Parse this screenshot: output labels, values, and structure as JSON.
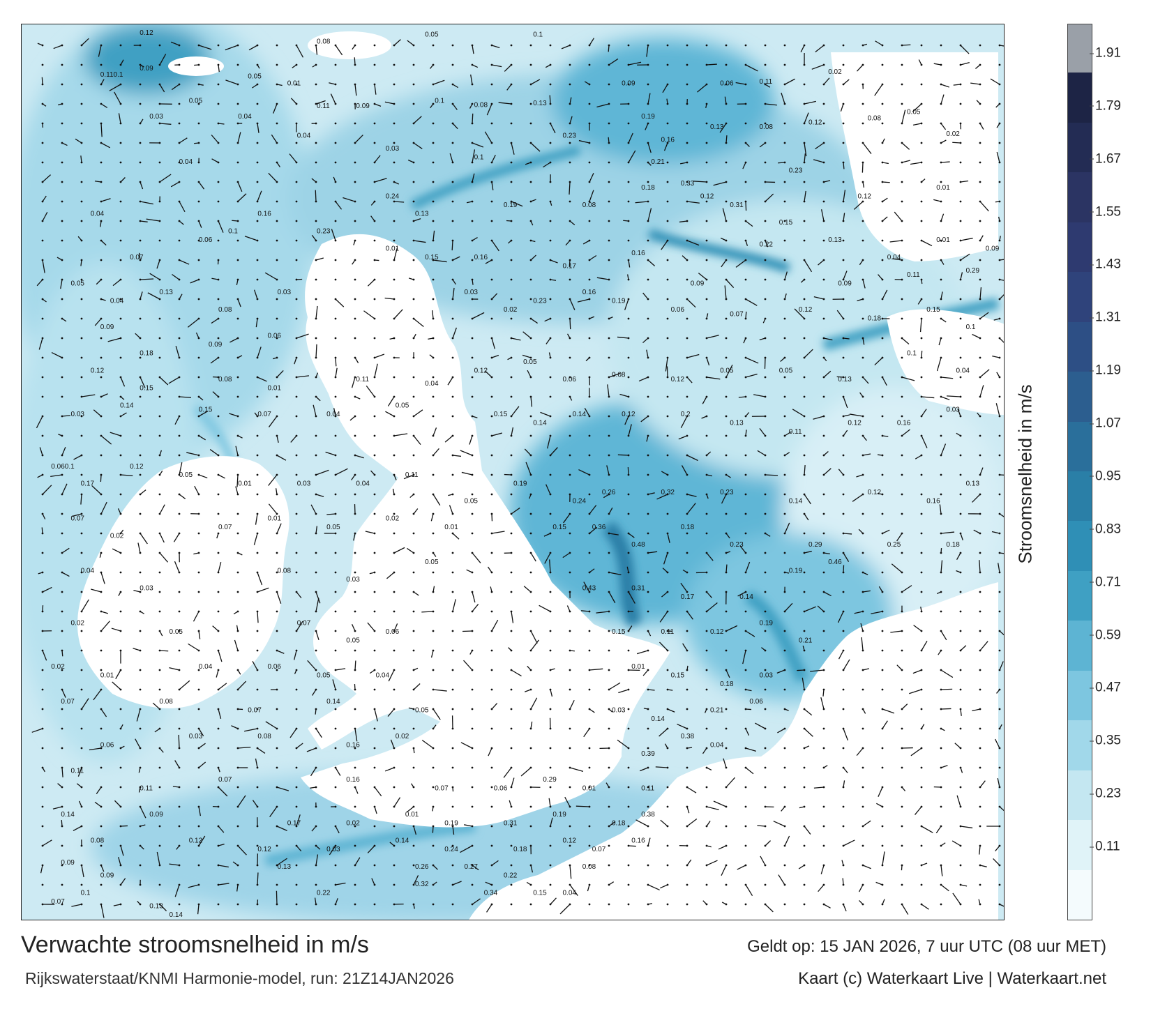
{
  "title": "Verwachte stroomsnelheid in m/s",
  "subtitle": "Rijkswaterstaat/KNMI Harmonie-model, run: 21Z14JAN2026",
  "valid_time": "Geldt op: 15 JAN 2026, 7 uur UTC (08 uur MET)",
  "credit": "Kaart (c) Waterkaart Live | Waterkaart.net",
  "colorbar": {
    "title": "Stroomsnelheid in m/s",
    "ticks": [
      "0.11",
      "0.23",
      "0.35",
      "0.47",
      "0.59",
      "0.71",
      "0.83",
      "0.95",
      "1.07",
      "1.19",
      "1.31",
      "1.43",
      "1.55",
      "1.67",
      "1.79",
      "1.91"
    ],
    "colors": [
      "#f4fbfd",
      "#e0f3f8",
      "#c4e7f1",
      "#a1d8ea",
      "#7dc6e0",
      "#5db4d3",
      "#3fa0c3",
      "#2f8fb6",
      "#2a7fa7",
      "#2a6f9b",
      "#2c5e8f",
      "#2d4f85",
      "#2f437b",
      "#2e3a70",
      "#2b3463",
      "#232c54",
      "#1d2445",
      "#9aa0a8"
    ]
  },
  "map": {
    "legend_speed_colors": [
      "#ffffff",
      "#d8eff6",
      "#9fd4e8",
      "#5fb6d6",
      "#2e95c0"
    ],
    "labels": [
      {
        "x": 12,
        "y": 1.2,
        "t": "0.12"
      },
      {
        "x": 30,
        "y": 2.2,
        "t": "0.08"
      },
      {
        "x": 41,
        "y": 1.4,
        "t": "0.05"
      },
      {
        "x": 52,
        "y": 1.4,
        "t": "0.1"
      },
      {
        "x": 8,
        "y": 6,
        "t": "0.110.1"
      },
      {
        "x": 12,
        "y": 5.3,
        "t": "0.09"
      },
      {
        "x": 23,
        "y": 6.2,
        "t": "0.05"
      },
      {
        "x": 27,
        "y": 7,
        "t": "0.01"
      },
      {
        "x": 17,
        "y": 9,
        "t": "0.05"
      },
      {
        "x": 13,
        "y": 10.8,
        "t": "0.03"
      },
      {
        "x": 22,
        "y": 10.8,
        "t": "0.04"
      },
      {
        "x": 30,
        "y": 9.6,
        "t": "0.11"
      },
      {
        "x": 34,
        "y": 9.6,
        "t": "0.09"
      },
      {
        "x": 42,
        "y": 9,
        "t": "0.1"
      },
      {
        "x": 46,
        "y": 9.5,
        "t": "0.08"
      },
      {
        "x": 52,
        "y": 9.3,
        "t": "0.13"
      },
      {
        "x": 61,
        "y": 7,
        "t": "0.09"
      },
      {
        "x": 71,
        "y": 7,
        "t": "0.06"
      },
      {
        "x": 75,
        "y": 6.8,
        "t": "0.11"
      },
      {
        "x": 82,
        "y": 5.7,
        "t": "0.02"
      },
      {
        "x": 63,
        "y": 10.8,
        "t": "0.19"
      },
      {
        "x": 65,
        "y": 13.5,
        "t": "0.16"
      },
      {
        "x": 70,
        "y": 12,
        "t": "0.13"
      },
      {
        "x": 75,
        "y": 12,
        "t": "0.08"
      },
      {
        "x": 80,
        "y": 11.5,
        "t": "0.12"
      },
      {
        "x": 86,
        "y": 11,
        "t": "0.08"
      },
      {
        "x": 90,
        "y": 10.3,
        "t": "0.05"
      },
      {
        "x": 94,
        "y": 12.8,
        "t": "0.02"
      },
      {
        "x": 16,
        "y": 16,
        "t": "0.04"
      },
      {
        "x": 18,
        "y": 25,
        "t": "0.06"
      },
      {
        "x": 28,
        "y": 13,
        "t": "0.04"
      },
      {
        "x": 37,
        "y": 14.5,
        "t": "0.03"
      },
      {
        "x": 46,
        "y": 15.5,
        "t": "0.1"
      },
      {
        "x": 55,
        "y": 13,
        "t": "0.23"
      },
      {
        "x": 64,
        "y": 16,
        "t": "0.21"
      },
      {
        "x": 69,
        "y": 20,
        "t": "0.12"
      },
      {
        "x": 78,
        "y": 17,
        "t": "0.23"
      },
      {
        "x": 85,
        "y": 20,
        "t": "0.12"
      },
      {
        "x": 93,
        "y": 19,
        "t": "0.01"
      },
      {
        "x": 7,
        "y": 22,
        "t": "0.04"
      },
      {
        "x": 11,
        "y": 27,
        "t": "0.07"
      },
      {
        "x": 21,
        "y": 24,
        "t": "0.1"
      },
      {
        "x": 24,
        "y": 22,
        "t": "0.16"
      },
      {
        "x": 30,
        "y": 24,
        "t": "0.23"
      },
      {
        "x": 37,
        "y": 20,
        "t": "0.24"
      },
      {
        "x": 40,
        "y": 22,
        "t": "0.13"
      },
      {
        "x": 49,
        "y": 21,
        "t": "0.19"
      },
      {
        "x": 57,
        "y": 21,
        "t": "0.08"
      },
      {
        "x": 63,
        "y": 19,
        "t": "0.18"
      },
      {
        "x": 67,
        "y": 18.5,
        "t": "0.33"
      },
      {
        "x": 72,
        "y": 21,
        "t": "0.31"
      },
      {
        "x": 77,
        "y": 23,
        "t": "0.15"
      },
      {
        "x": 82,
        "y": 25,
        "t": "0.13"
      },
      {
        "x": 88,
        "y": 27,
        "t": "0.04"
      },
      {
        "x": 93,
        "y": 25,
        "t": "0.01"
      },
      {
        "x": 98,
        "y": 26,
        "t": "0.09"
      },
      {
        "x": 5,
        "y": 30,
        "t": "0.05"
      },
      {
        "x": 9,
        "y": 32,
        "t": "0.04"
      },
      {
        "x": 14,
        "y": 31,
        "t": "0.13"
      },
      {
        "x": 20,
        "y": 33,
        "t": "0.08"
      },
      {
        "x": 26,
        "y": 31,
        "t": "0.03"
      },
      {
        "x": 37,
        "y": 26,
        "t": "0.01"
      },
      {
        "x": 41,
        "y": 27,
        "t": "0.15"
      },
      {
        "x": 46,
        "y": 27,
        "t": "0.16"
      },
      {
        "x": 55,
        "y": 28,
        "t": "0.17"
      },
      {
        "x": 62,
        "y": 26.5,
        "t": "0.16"
      },
      {
        "x": 68,
        "y": 30,
        "t": "0.09"
      },
      {
        "x": 75,
        "y": 25.5,
        "t": "0.22"
      },
      {
        "x": 83,
        "y": 30,
        "t": "0.09"
      },
      {
        "x": 90,
        "y": 29,
        "t": "0.11"
      },
      {
        "x": 96,
        "y": 28.5,
        "t": "0.29"
      },
      {
        "x": 8,
        "y": 35,
        "t": "0.09"
      },
      {
        "x": 12,
        "y": 38,
        "t": "0.18"
      },
      {
        "x": 19,
        "y": 37,
        "t": "0.09"
      },
      {
        "x": 25,
        "y": 36,
        "t": "0.06"
      },
      {
        "x": 45,
        "y": 31,
        "t": "0.03"
      },
      {
        "x": 49,
        "y": 33,
        "t": "0.02"
      },
      {
        "x": 52,
        "y": 32,
        "t": "0.23"
      },
      {
        "x": 57,
        "y": 31,
        "t": "0.16"
      },
      {
        "x": 60,
        "y": 32,
        "t": "0.19"
      },
      {
        "x": 66,
        "y": 33,
        "t": "0.06"
      },
      {
        "x": 72,
        "y": 33.5,
        "t": "0.07"
      },
      {
        "x": 79,
        "y": 33,
        "t": "0.12"
      },
      {
        "x": 86,
        "y": 34,
        "t": "0.18"
      },
      {
        "x": 92,
        "y": 33,
        "t": "0.15"
      },
      {
        "x": 96,
        "y": 35,
        "t": "0.1"
      },
      {
        "x": 7,
        "y": 40,
        "t": "0.12"
      },
      {
        "x": 12,
        "y": 42,
        "t": "0.15"
      },
      {
        "x": 20,
        "y": 41,
        "t": "0.08"
      },
      {
        "x": 25,
        "y": 42,
        "t": "0.01"
      },
      {
        "x": 34,
        "y": 41,
        "t": "0.11"
      },
      {
        "x": 41,
        "y": 41.5,
        "t": "0.04"
      },
      {
        "x": 46,
        "y": 40,
        "t": "0.12"
      },
      {
        "x": 51,
        "y": 39,
        "t": "0.05"
      },
      {
        "x": 55,
        "y": 41,
        "t": "0.06"
      },
      {
        "x": 60,
        "y": 40.5,
        "t": "0.08"
      },
      {
        "x": 66,
        "y": 41,
        "t": "0.12"
      },
      {
        "x": 71,
        "y": 40,
        "t": "0.05"
      },
      {
        "x": 77,
        "y": 40,
        "t": "0.05"
      },
      {
        "x": 83,
        "y": 41,
        "t": "0.13"
      },
      {
        "x": 90,
        "y": 38,
        "t": "0.1"
      },
      {
        "x": 95,
        "y": 40,
        "t": "0.04"
      },
      {
        "x": 5,
        "y": 45,
        "t": "0.03"
      },
      {
        "x": 10,
        "y": 44,
        "t": "0.14"
      },
      {
        "x": 18,
        "y": 44.5,
        "t": "0.15"
      },
      {
        "x": 24,
        "y": 45,
        "t": "0.07"
      },
      {
        "x": 31,
        "y": 45,
        "t": "0.04"
      },
      {
        "x": 38,
        "y": 44,
        "t": "0.05"
      },
      {
        "x": 48,
        "y": 45,
        "t": "0.15"
      },
      {
        "x": 52,
        "y": 46,
        "t": "0.14"
      },
      {
        "x": 56,
        "y": 45,
        "t": "0.14"
      },
      {
        "x": 61,
        "y": 45,
        "t": "0.12"
      },
      {
        "x": 67,
        "y": 45,
        "t": "0.2"
      },
      {
        "x": 72,
        "y": 46,
        "t": "0.13"
      },
      {
        "x": 78,
        "y": 47,
        "t": "0.11"
      },
      {
        "x": 84,
        "y": 46,
        "t": "0.12"
      },
      {
        "x": 89,
        "y": 46,
        "t": "0.16"
      },
      {
        "x": 94,
        "y": 44.5,
        "t": "0.03"
      },
      {
        "x": 3,
        "y": 51,
        "t": "0.060.1"
      },
      {
        "x": 6,
        "y": 53,
        "t": "0.17"
      },
      {
        "x": 11,
        "y": 51,
        "t": "0.12"
      },
      {
        "x": 16,
        "y": 52,
        "t": "0.05"
      },
      {
        "x": 22,
        "y": 53,
        "t": "0.01"
      },
      {
        "x": 28,
        "y": 53,
        "t": "0.03"
      },
      {
        "x": 34,
        "y": 53,
        "t": "0.04"
      },
      {
        "x": 39,
        "y": 52,
        "t": "0.11"
      },
      {
        "x": 45,
        "y": 55,
        "t": "0.05"
      },
      {
        "x": 50,
        "y": 53,
        "t": "0.19"
      },
      {
        "x": 56,
        "y": 55,
        "t": "0.24"
      },
      {
        "x": 59,
        "y": 54,
        "t": "0.26"
      },
      {
        "x": 65,
        "y": 54,
        "t": "0.32"
      },
      {
        "x": 71,
        "y": 54,
        "t": "0.23"
      },
      {
        "x": 78,
        "y": 55,
        "t": "0.14"
      },
      {
        "x": 86,
        "y": 54,
        "t": "0.12"
      },
      {
        "x": 92,
        "y": 55,
        "t": "0.16"
      },
      {
        "x": 96,
        "y": 53,
        "t": "0.13"
      },
      {
        "x": 5,
        "y": 57,
        "t": "0.07"
      },
      {
        "x": 9,
        "y": 59,
        "t": "0.02"
      },
      {
        "x": 20,
        "y": 58,
        "t": "0.07"
      },
      {
        "x": 25,
        "y": 57,
        "t": "0.01"
      },
      {
        "x": 31,
        "y": 58,
        "t": "0.05"
      },
      {
        "x": 37,
        "y": 57,
        "t": "0.02"
      },
      {
        "x": 43,
        "y": 58,
        "t": "0.01"
      },
      {
        "x": 54,
        "y": 58,
        "t": "0.15"
      },
      {
        "x": 58,
        "y": 58,
        "t": "0.36"
      },
      {
        "x": 62,
        "y": 60,
        "t": "0.48"
      },
      {
        "x": 67,
        "y": 58,
        "t": "0.18"
      },
      {
        "x": 72,
        "y": 60,
        "t": "0.23"
      },
      {
        "x": 80,
        "y": 60,
        "t": "0.29"
      },
      {
        "x": 88,
        "y": 60,
        "t": "0.25"
      },
      {
        "x": 94,
        "y": 60,
        "t": "0.18"
      },
      {
        "x": 6,
        "y": 63,
        "t": "0.04"
      },
      {
        "x": 12,
        "y": 65,
        "t": "0.03"
      },
      {
        "x": 26,
        "y": 63,
        "t": "0.08"
      },
      {
        "x": 33,
        "y": 64,
        "t": "0.03"
      },
      {
        "x": 41,
        "y": 62,
        "t": "0.05"
      },
      {
        "x": 57,
        "y": 65,
        "t": "0.43"
      },
      {
        "x": 62,
        "y": 65,
        "t": "0.31"
      },
      {
        "x": 67,
        "y": 66,
        "t": "0.17"
      },
      {
        "x": 73,
        "y": 66,
        "t": "0.14"
      },
      {
        "x": 78,
        "y": 63,
        "t": "0.19"
      },
      {
        "x": 82,
        "y": 62,
        "t": "0.46"
      },
      {
        "x": 5,
        "y": 69,
        "t": "0.02"
      },
      {
        "x": 15,
        "y": 70,
        "t": "0.05"
      },
      {
        "x": 28,
        "y": 69,
        "t": "0.07"
      },
      {
        "x": 33,
        "y": 71,
        "t": "0.05"
      },
      {
        "x": 37,
        "y": 70,
        "t": "0.06"
      },
      {
        "x": 60,
        "y": 70,
        "t": "0.15"
      },
      {
        "x": 65,
        "y": 70,
        "t": "0.11"
      },
      {
        "x": 70,
        "y": 70,
        "t": "0.12"
      },
      {
        "x": 75,
        "y": 69,
        "t": "0.19"
      },
      {
        "x": 79,
        "y": 71,
        "t": "0.21"
      },
      {
        "x": 3,
        "y": 74,
        "t": "0.02"
      },
      {
        "x": 8,
        "y": 75,
        "t": "0.01"
      },
      {
        "x": 18,
        "y": 74,
        "t": "0.04"
      },
      {
        "x": 25,
        "y": 74,
        "t": "0.06"
      },
      {
        "x": 30,
        "y": 75,
        "t": "0.05"
      },
      {
        "x": 36,
        "y": 75,
        "t": "0.04"
      },
      {
        "x": 62,
        "y": 74,
        "t": "0.01"
      },
      {
        "x": 66,
        "y": 75,
        "t": "0.15"
      },
      {
        "x": 71,
        "y": 76,
        "t": "0.18"
      },
      {
        "x": 75,
        "y": 75,
        "t": "0.03"
      },
      {
        "x": 4,
        "y": 78,
        "t": "0.07"
      },
      {
        "x": 14,
        "y": 78,
        "t": "0.08"
      },
      {
        "x": 23,
        "y": 79,
        "t": "0.07"
      },
      {
        "x": 31,
        "y": 78,
        "t": "0.14"
      },
      {
        "x": 40,
        "y": 79,
        "t": "0.05"
      },
      {
        "x": 60,
        "y": 79,
        "t": "0.03"
      },
      {
        "x": 64,
        "y": 80,
        "t": "0.14"
      },
      {
        "x": 70,
        "y": 79,
        "t": "0.21"
      },
      {
        "x": 74,
        "y": 78,
        "t": "0.06"
      },
      {
        "x": 8,
        "y": 83,
        "t": "0.06"
      },
      {
        "x": 17,
        "y": 82,
        "t": "0.03"
      },
      {
        "x": 24,
        "y": 82,
        "t": "0.08"
      },
      {
        "x": 33,
        "y": 83,
        "t": "0.16"
      },
      {
        "x": 38,
        "y": 82,
        "t": "0.02"
      },
      {
        "x": 63,
        "y": 84,
        "t": "0.39"
      },
      {
        "x": 67,
        "y": 82,
        "t": "0.38"
      },
      {
        "x": 70,
        "y": 83,
        "t": "0.04"
      },
      {
        "x": 5,
        "y": 86,
        "t": "0.11"
      },
      {
        "x": 12,
        "y": 88,
        "t": "0.11"
      },
      {
        "x": 20,
        "y": 87,
        "t": "0.07"
      },
      {
        "x": 33,
        "y": 87,
        "t": "0.16"
      },
      {
        "x": 42,
        "y": 88,
        "t": "0.07"
      },
      {
        "x": 48,
        "y": 88,
        "t": "0.06"
      },
      {
        "x": 53,
        "y": 87,
        "t": "0.29"
      },
      {
        "x": 57,
        "y": 88,
        "t": "0.01"
      },
      {
        "x": 63,
        "y": 88,
        "t": "0.11"
      },
      {
        "x": 4,
        "y": 91,
        "t": "0.14"
      },
      {
        "x": 13,
        "y": 91,
        "t": "0.09"
      },
      {
        "x": 27,
        "y": 92,
        "t": "0.17"
      },
      {
        "x": 33,
        "y": 92,
        "t": "0.02"
      },
      {
        "x": 39,
        "y": 91,
        "t": "0.01"
      },
      {
        "x": 43,
        "y": 92,
        "t": "0.19"
      },
      {
        "x": 49,
        "y": 92,
        "t": "0.31"
      },
      {
        "x": 54,
        "y": 91,
        "t": "0.19"
      },
      {
        "x": 60,
        "y": 92,
        "t": "0.18"
      },
      {
        "x": 63,
        "y": 91,
        "t": "0.38"
      },
      {
        "x": 7,
        "y": 94,
        "t": "0.08"
      },
      {
        "x": 17,
        "y": 94,
        "t": "0.12"
      },
      {
        "x": 24,
        "y": 95,
        "t": "0.12"
      },
      {
        "x": 31,
        "y": 95,
        "t": "0.03"
      },
      {
        "x": 38,
        "y": 94,
        "t": "0.14"
      },
      {
        "x": 43,
        "y": 95,
        "t": "0.24"
      },
      {
        "x": 50,
        "y": 95,
        "t": "0.18"
      },
      {
        "x": 55,
        "y": 94,
        "t": "0.12"
      },
      {
        "x": 58,
        "y": 95,
        "t": "0.07"
      },
      {
        "x": 62,
        "y": 94,
        "t": "0.16"
      },
      {
        "x": 4,
        "y": 96.5,
        "t": "0.09"
      },
      {
        "x": 8,
        "y": 98,
        "t": "0.09"
      },
      {
        "x": 26,
        "y": 97,
        "t": "0.13"
      },
      {
        "x": 40,
        "y": 97,
        "t": "0.26"
      },
      {
        "x": 45,
        "y": 97,
        "t": "0.27"
      },
      {
        "x": 49,
        "y": 98,
        "t": "0.22"
      },
      {
        "x": 57,
        "y": 97,
        "t": "0.08"
      },
      {
        "x": 3,
        "y": 101,
        "t": "0.07"
      },
      {
        "x": 6,
        "y": 100,
        "t": "0.1"
      },
      {
        "x": 13,
        "y": 101.5,
        "t": "0.13"
      },
      {
        "x": 15,
        "y": 102.5,
        "t": "0.14"
      },
      {
        "x": 30,
        "y": 100,
        "t": "0.22"
      },
      {
        "x": 40,
        "y": 99,
        "t": "0.32"
      },
      {
        "x": 47,
        "y": 100,
        "t": "0.34"
      },
      {
        "x": 52,
        "y": 100,
        "t": "0.15"
      },
      {
        "x": 55,
        "y": 100,
        "t": "0.04"
      }
    ]
  }
}
